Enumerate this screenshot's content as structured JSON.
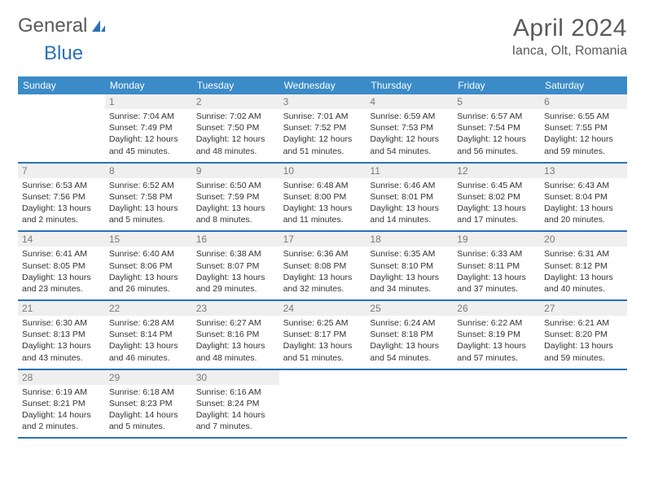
{
  "brand": {
    "part1": "General",
    "part2": "Blue"
  },
  "title": "April 2024",
  "location": "Ianca, Olt, Romania",
  "colors": {
    "header_bg": "#3b8bc8",
    "rule": "#2a71b8",
    "daynum_bg": "#efefef",
    "text": "#333333",
    "muted": "#5a5a5a"
  },
  "dow": [
    "Sunday",
    "Monday",
    "Tuesday",
    "Wednesday",
    "Thursday",
    "Friday",
    "Saturday"
  ],
  "weeks": [
    [
      {
        "n": "",
        "sr": "",
        "ss": "",
        "dl": ""
      },
      {
        "n": "1",
        "sr": "Sunrise: 7:04 AM",
        "ss": "Sunset: 7:49 PM",
        "dl": "Daylight: 12 hours and 45 minutes."
      },
      {
        "n": "2",
        "sr": "Sunrise: 7:02 AM",
        "ss": "Sunset: 7:50 PM",
        "dl": "Daylight: 12 hours and 48 minutes."
      },
      {
        "n": "3",
        "sr": "Sunrise: 7:01 AM",
        "ss": "Sunset: 7:52 PM",
        "dl": "Daylight: 12 hours and 51 minutes."
      },
      {
        "n": "4",
        "sr": "Sunrise: 6:59 AM",
        "ss": "Sunset: 7:53 PM",
        "dl": "Daylight: 12 hours and 54 minutes."
      },
      {
        "n": "5",
        "sr": "Sunrise: 6:57 AM",
        "ss": "Sunset: 7:54 PM",
        "dl": "Daylight: 12 hours and 56 minutes."
      },
      {
        "n": "6",
        "sr": "Sunrise: 6:55 AM",
        "ss": "Sunset: 7:55 PM",
        "dl": "Daylight: 12 hours and 59 minutes."
      }
    ],
    [
      {
        "n": "7",
        "sr": "Sunrise: 6:53 AM",
        "ss": "Sunset: 7:56 PM",
        "dl": "Daylight: 13 hours and 2 minutes."
      },
      {
        "n": "8",
        "sr": "Sunrise: 6:52 AM",
        "ss": "Sunset: 7:58 PM",
        "dl": "Daylight: 13 hours and 5 minutes."
      },
      {
        "n": "9",
        "sr": "Sunrise: 6:50 AM",
        "ss": "Sunset: 7:59 PM",
        "dl": "Daylight: 13 hours and 8 minutes."
      },
      {
        "n": "10",
        "sr": "Sunrise: 6:48 AM",
        "ss": "Sunset: 8:00 PM",
        "dl": "Daylight: 13 hours and 11 minutes."
      },
      {
        "n": "11",
        "sr": "Sunrise: 6:46 AM",
        "ss": "Sunset: 8:01 PM",
        "dl": "Daylight: 13 hours and 14 minutes."
      },
      {
        "n": "12",
        "sr": "Sunrise: 6:45 AM",
        "ss": "Sunset: 8:02 PM",
        "dl": "Daylight: 13 hours and 17 minutes."
      },
      {
        "n": "13",
        "sr": "Sunrise: 6:43 AM",
        "ss": "Sunset: 8:04 PM",
        "dl": "Daylight: 13 hours and 20 minutes."
      }
    ],
    [
      {
        "n": "14",
        "sr": "Sunrise: 6:41 AM",
        "ss": "Sunset: 8:05 PM",
        "dl": "Daylight: 13 hours and 23 minutes."
      },
      {
        "n": "15",
        "sr": "Sunrise: 6:40 AM",
        "ss": "Sunset: 8:06 PM",
        "dl": "Daylight: 13 hours and 26 minutes."
      },
      {
        "n": "16",
        "sr": "Sunrise: 6:38 AM",
        "ss": "Sunset: 8:07 PM",
        "dl": "Daylight: 13 hours and 29 minutes."
      },
      {
        "n": "17",
        "sr": "Sunrise: 6:36 AM",
        "ss": "Sunset: 8:08 PM",
        "dl": "Daylight: 13 hours and 32 minutes."
      },
      {
        "n": "18",
        "sr": "Sunrise: 6:35 AM",
        "ss": "Sunset: 8:10 PM",
        "dl": "Daylight: 13 hours and 34 minutes."
      },
      {
        "n": "19",
        "sr": "Sunrise: 6:33 AM",
        "ss": "Sunset: 8:11 PM",
        "dl": "Daylight: 13 hours and 37 minutes."
      },
      {
        "n": "20",
        "sr": "Sunrise: 6:31 AM",
        "ss": "Sunset: 8:12 PM",
        "dl": "Daylight: 13 hours and 40 minutes."
      }
    ],
    [
      {
        "n": "21",
        "sr": "Sunrise: 6:30 AM",
        "ss": "Sunset: 8:13 PM",
        "dl": "Daylight: 13 hours and 43 minutes."
      },
      {
        "n": "22",
        "sr": "Sunrise: 6:28 AM",
        "ss": "Sunset: 8:14 PM",
        "dl": "Daylight: 13 hours and 46 minutes."
      },
      {
        "n": "23",
        "sr": "Sunrise: 6:27 AM",
        "ss": "Sunset: 8:16 PM",
        "dl": "Daylight: 13 hours and 48 minutes."
      },
      {
        "n": "24",
        "sr": "Sunrise: 6:25 AM",
        "ss": "Sunset: 8:17 PM",
        "dl": "Daylight: 13 hours and 51 minutes."
      },
      {
        "n": "25",
        "sr": "Sunrise: 6:24 AM",
        "ss": "Sunset: 8:18 PM",
        "dl": "Daylight: 13 hours and 54 minutes."
      },
      {
        "n": "26",
        "sr": "Sunrise: 6:22 AM",
        "ss": "Sunset: 8:19 PM",
        "dl": "Daylight: 13 hours and 57 minutes."
      },
      {
        "n": "27",
        "sr": "Sunrise: 6:21 AM",
        "ss": "Sunset: 8:20 PM",
        "dl": "Daylight: 13 hours and 59 minutes."
      }
    ],
    [
      {
        "n": "28",
        "sr": "Sunrise: 6:19 AM",
        "ss": "Sunset: 8:21 PM",
        "dl": "Daylight: 14 hours and 2 minutes."
      },
      {
        "n": "29",
        "sr": "Sunrise: 6:18 AM",
        "ss": "Sunset: 8:23 PM",
        "dl": "Daylight: 14 hours and 5 minutes."
      },
      {
        "n": "30",
        "sr": "Sunrise: 6:16 AM",
        "ss": "Sunset: 8:24 PM",
        "dl": "Daylight: 14 hours and 7 minutes."
      },
      {
        "n": "",
        "sr": "",
        "ss": "",
        "dl": ""
      },
      {
        "n": "",
        "sr": "",
        "ss": "",
        "dl": ""
      },
      {
        "n": "",
        "sr": "",
        "ss": "",
        "dl": ""
      },
      {
        "n": "",
        "sr": "",
        "ss": "",
        "dl": ""
      }
    ]
  ]
}
